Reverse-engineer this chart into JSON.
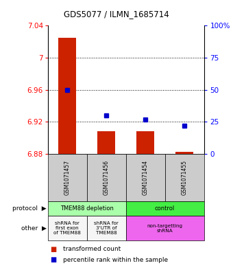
{
  "title": "GDS5077 / ILMN_1685714",
  "samples": [
    "GSM1071457",
    "GSM1071456",
    "GSM1071454",
    "GSM1071455"
  ],
  "red_values": [
    7.025,
    6.908,
    6.908,
    6.883
  ],
  "blue_percentiles": [
    50,
    30,
    27,
    22
  ],
  "ymin": 6.88,
  "ymax": 7.04,
  "yticks": [
    6.88,
    6.92,
    6.96,
    7.0,
    7.04
  ],
  "ytick_labels": [
    "6.88",
    "6.92",
    "6.96",
    "7",
    "7.04"
  ],
  "right_yticks": [
    0,
    25,
    50,
    75,
    100
  ],
  "right_ytick_labels": [
    "0",
    "25",
    "50",
    "75",
    "100%"
  ],
  "bar_bottom": 6.88,
  "protocol_row": [
    {
      "label": "TMEM88 depletion",
      "color": "#aaffaa",
      "span": [
        0,
        2
      ]
    },
    {
      "label": "control",
      "color": "#44ee44",
      "span": [
        2,
        4
      ]
    }
  ],
  "other_row": [
    {
      "label": "shRNA for\nfirst exon\nof TMEM88",
      "color": "#f5f5f5",
      "span": [
        0,
        1
      ]
    },
    {
      "label": "shRNA for\n3'UTR of\nTMEM88",
      "color": "#f5f5f5",
      "span": [
        1,
        2
      ]
    },
    {
      "label": "non-targetting\nshRNA",
      "color": "#ee66ee",
      "span": [
        2,
        4
      ]
    }
  ],
  "legend_red": "transformed count",
  "legend_blue": "percentile rank within the sample",
  "bar_color": "#cc2200",
  "dot_color": "#0000cc",
  "grid_color": "#888888",
  "label_bg": "#cccccc"
}
